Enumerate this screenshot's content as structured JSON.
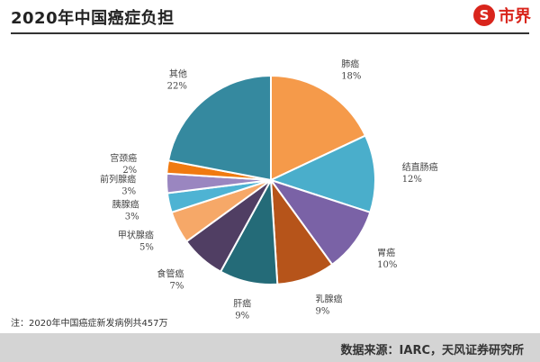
{
  "header": {
    "title": "2020年中国癌症负担",
    "logo_glyph": "S",
    "logo_text": "市界",
    "brand_color": "#d9251c"
  },
  "footnote": "注：2020年中国癌症新发病例共457万",
  "source": "数据来源：IARC，天风证券研究所",
  "chart_data": {
    "type": "pie",
    "title": "2020年中国癌症负担",
    "slices": [
      {
        "label": "肺癌",
        "value": 18,
        "value_label": "18%",
        "color": "#f59a4a"
      },
      {
        "label": "结直肠癌",
        "value": 12,
        "value_label": "12%",
        "color": "#4aaecb"
      },
      {
        "label": "胃癌",
        "value": 10,
        "value_label": "10%",
        "color": "#7a62a6"
      },
      {
        "label": "乳腺癌",
        "value": 9,
        "value_label": "9%",
        "color": "#b6541a"
      },
      {
        "label": "肝癌",
        "value": 9,
        "value_label": "9%",
        "color": "#246b78"
      },
      {
        "label": "食管癌",
        "value": 7,
        "value_label": "7%",
        "color": "#503e63"
      },
      {
        "label": "甲状腺癌",
        "value": 5,
        "value_label": "5%",
        "color": "#f6a868"
      },
      {
        "label": "胰腺癌",
        "value": 3,
        "value_label": "3%",
        "color": "#4eb3d3"
      },
      {
        "label": "前列腺癌",
        "value": 3,
        "value_label": "3%",
        "color": "#9a86c0"
      },
      {
        "label": "宫颈癌",
        "value": 2,
        "value_label": "2%",
        "color": "#f07a10"
      },
      {
        "label": "其他",
        "value": 22,
        "value_label": "22%",
        "color": "#35899f"
      }
    ]
  }
}
